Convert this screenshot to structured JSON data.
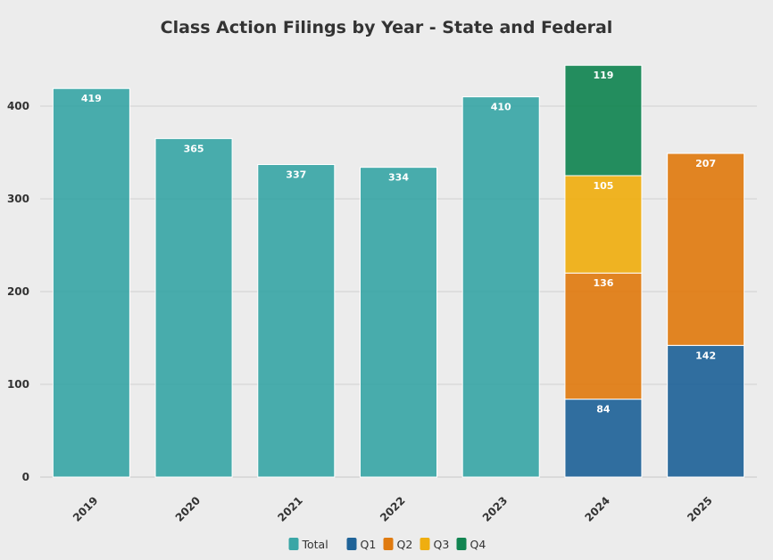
{
  "chart_data": {
    "type": "bar",
    "title": "Class Action Filings by Year - State and Federal",
    "xlabel": "",
    "ylabel": "",
    "categories": [
      "2019",
      "2020",
      "2021",
      "2022",
      "2023",
      "2024",
      "2025"
    ],
    "ylim": [
      0,
      450
    ],
    "yticks": [
      0,
      100,
      200,
      300,
      400
    ],
    "stacked": true,
    "grid": true,
    "legend_position": "bottom",
    "series": [
      {
        "name": "Total",
        "color": "#3aa6a6",
        "values": [
          419,
          365,
          337,
          334,
          410,
          null,
          null
        ]
      },
      {
        "name": "Q1",
        "color": "#1f6398",
        "values": [
          null,
          null,
          null,
          null,
          null,
          84,
          142
        ]
      },
      {
        "name": "Q2",
        "color": "#e07b10",
        "values": [
          null,
          null,
          null,
          null,
          null,
          136,
          207
        ]
      },
      {
        "name": "Q3",
        "color": "#efae10",
        "values": [
          null,
          null,
          null,
          null,
          null,
          105,
          null
        ]
      },
      {
        "name": "Q4",
        "color": "#118451",
        "values": [
          null,
          null,
          null,
          null,
          null,
          119,
          null
        ]
      }
    ]
  }
}
